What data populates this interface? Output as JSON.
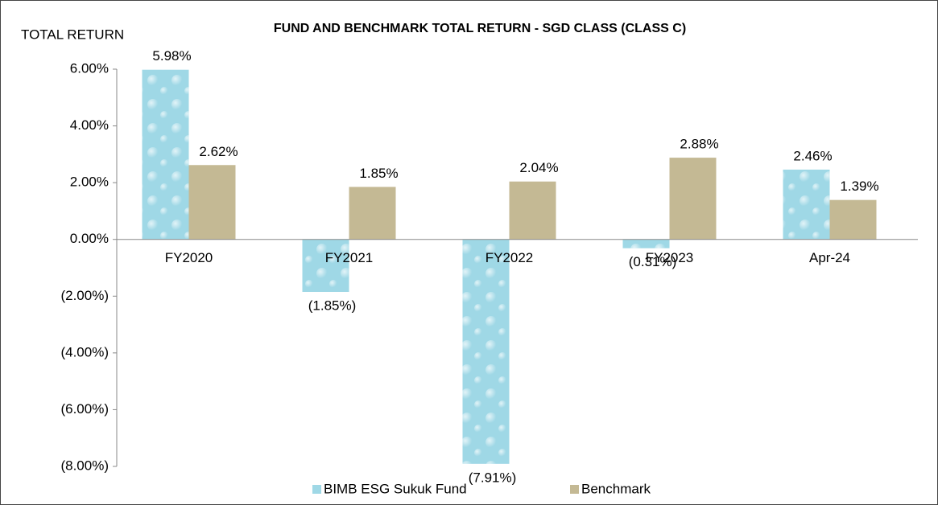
{
  "chart_data": {
    "type": "bar",
    "title": "FUND AND BENCHMARK TOTAL RETURN - SGD CLASS (CLASS C)",
    "y_label": "TOTAL RETURN",
    "categories": [
      "FY2020",
      "FY2021",
      "FY2022",
      "FY2023",
      "Apr-24"
    ],
    "series": [
      {
        "name": "BIMB ESG Sukuk Fund",
        "color": "#9fd8e6",
        "values": [
          5.98,
          -1.85,
          -7.91,
          -0.31,
          2.46
        ],
        "value_labels": [
          "5.98%",
          "(1.85%)",
          "(7.91%)",
          "(0.31%)",
          "2.46%"
        ]
      },
      {
        "name": "Benchmark",
        "color": "#c4b994",
        "values": [
          2.62,
          1.85,
          2.04,
          2.88,
          1.39
        ],
        "value_labels": [
          "2.62%",
          "1.85%",
          "2.04%",
          "2.88%",
          "1.39%"
        ]
      }
    ],
    "ylim": [
      -8,
      6
    ],
    "yticks": [
      {
        "value": -8,
        "label": "(8.00%)"
      },
      {
        "value": -6,
        "label": "(6.00%)"
      },
      {
        "value": -4,
        "label": "(4.00%)"
      },
      {
        "value": -2,
        "label": "(2.00%)"
      },
      {
        "value": 0,
        "label": "0.00%"
      },
      {
        "value": 2,
        "label": "2.00%"
      },
      {
        "value": 4,
        "label": "4.00%"
      },
      {
        "value": 6,
        "label": "6.00%"
      }
    ],
    "grid": false,
    "legend": "bottom"
  }
}
